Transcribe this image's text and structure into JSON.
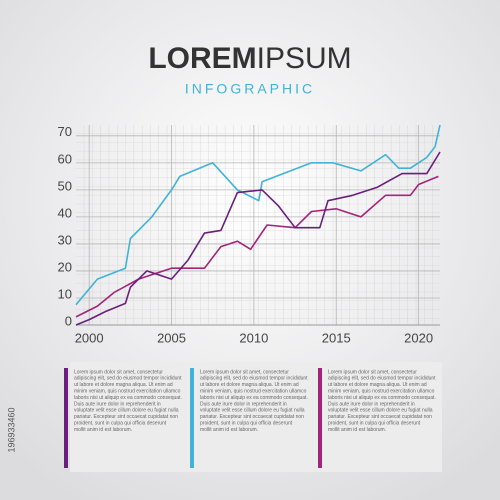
{
  "chart_data": {
    "type": "line",
    "title_bold": "LOREM",
    "title_light": "IPSUM",
    "subtitle": "INFOGRAPHIC",
    "xlim": [
      1999.2,
      2021.3
    ],
    "ylim": [
      0,
      74
    ],
    "xticks": [
      2000,
      2005,
      2010,
      2015,
      2020
    ],
    "yticks": [
      0,
      10,
      20,
      30,
      40,
      50,
      60,
      70
    ],
    "grid": true,
    "series": [
      {
        "color": "#3fb3d8",
        "x": [
          1999.2,
          2000.5,
          2002.2,
          2002.5,
          2003.8,
          2005,
          2005.5,
          2007.5,
          2009,
          2010.3,
          2010.5,
          2013.5,
          2014.8,
          2016.5,
          2018,
          2018.8,
          2019.5,
          2020.5,
          2021,
          2021.3
        ],
        "values": [
          7.5,
          17,
          21,
          32,
          40,
          50,
          55,
          60,
          50,
          46,
          53,
          60,
          60,
          57,
          63,
          58,
          58,
          62,
          66,
          74
        ]
      },
      {
        "color": "#a3247a",
        "x": [
          1999.2,
          2000.5,
          2001.5,
          2003,
          2004,
          2005,
          2007,
          2008,
          2009,
          2009.8,
          2010.8,
          2012.5,
          2013.5,
          2015,
          2016.5,
          2018,
          2019.5,
          2020,
          2021.2
        ],
        "values": [
          3,
          7,
          12,
          17,
          19,
          21,
          21,
          29,
          31,
          28,
          37,
          36,
          42,
          43,
          40,
          48,
          48,
          52,
          55
        ]
      },
      {
        "color": "#6a1f7c",
        "x": [
          1999.2,
          2000,
          2001,
          2002.2,
          2002.5,
          2003.5,
          2005,
          2006,
          2007,
          2008,
          2009,
          2010.5,
          2011.5,
          2012.5,
          2014,
          2014.5,
          2016,
          2017.5,
          2019,
          2020.5,
          2021.3
        ],
        "values": [
          0,
          2,
          5,
          8,
          14,
          20,
          17,
          24,
          34,
          35,
          49,
          50,
          44,
          36,
          36,
          46,
          48,
          51,
          56,
          56,
          64
        ]
      }
    ],
    "columns": [
      {
        "color": "#6a1f7c",
        "lines": [
          "Lorem ipsum dolor sit amet, consectetur",
          "adipiscing elit, sed do eiusmod tempor incididunt",
          "ut labore et dolore magna aliqua. Ut enim ad",
          "minim veniam, quis nostrud exercitation ullamco",
          "laboris nisi ut aliquip ex ea commodo consequat.",
          "Duis aute irure dolor in reprehenderit in",
          "voluptate velit esse cillum dolore eu fugiat nulla",
          "pariatur. Excepteur sint occaecat cupidatat non",
          "proident, sunt in culpa qui officia deserunt",
          "mollit anim id est laborum."
        ]
      },
      {
        "color": "#3fb3d8",
        "lines": [
          "Lorem ipsum dolor sit amet, consectetur",
          "adipiscing elit, sed do eiusmod tempor incididunt",
          "ut labore et dolore magna aliqua. Ut enim ad",
          "minim veniam, quis nostrud exercitation ullamco",
          "laboris nisi ut aliquip ex ea commodo consequat.",
          "Duis aute irure dolor in reprehenderit in",
          "voluptate velit esse cillum dolore eu fugiat nulla",
          "pariatur. Excepteur sint occaecat cupidatat non",
          "proident, sunt in culpa qui officia deserunt",
          "mollit anim id est laborum."
        ]
      },
      {
        "color": "#a3247a",
        "lines": [
          "Lorem ipsum dolor sit amet, consectetur",
          "adipiscing elit, sed do eiusmod tempor incididunt",
          "ut labore et dolore magna aliqua. Ut enim ad",
          "minim veniam, quis nostrud exercitation ullamco",
          "laboris nisi ut aliquip ex ea commodo consequat.",
          "Duis aute irure dolor in reprehenderit in",
          "voluptate velit esse cillum dolore eu fugiat nulla",
          "pariatur. Excepteur sint occaecat cupidatat non",
          "proident, sunt in culpa qui officia deserunt",
          "mollit anim id est laborum."
        ]
      }
    ],
    "stock_id": "196933460"
  }
}
